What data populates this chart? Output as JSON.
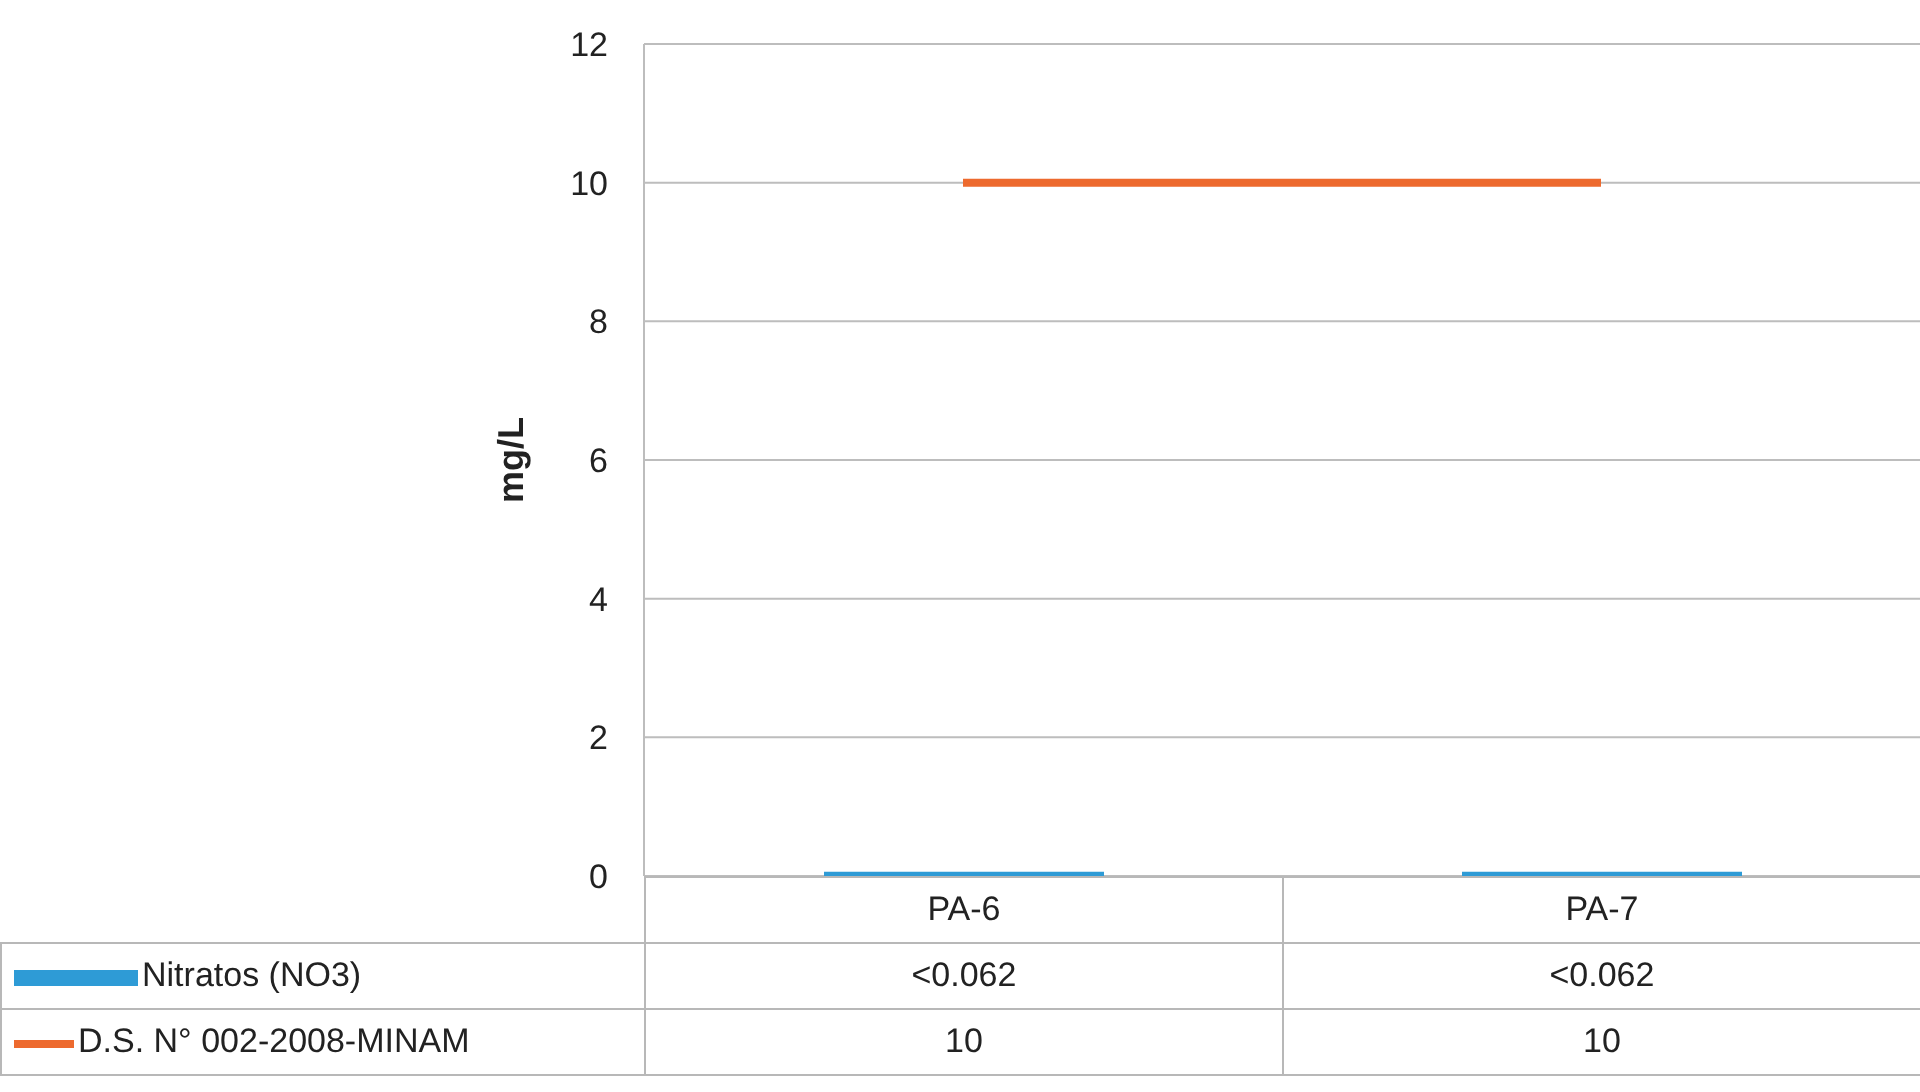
{
  "chart_data": {
    "type": "bar",
    "ylabel": "mg/L",
    "categories": [
      "PA-6",
      "PA-7"
    ],
    "series": [
      {
        "name": "Nitratos (NO3)",
        "color": "#2e9bd6",
        "values": [
          0.062,
          0.062
        ],
        "value_labels": [
          "<0.062",
          "<0.062"
        ]
      },
      {
        "name": "D.S. N° 002-2008-MINAM",
        "type": "line",
        "color": "#ed6a2e",
        "values": [
          10,
          10
        ],
        "value_labels": [
          "10",
          "10"
        ]
      }
    ],
    "ylim": [
      0,
      12
    ],
    "yticks": [
      0,
      2,
      4,
      6,
      8,
      10,
      12
    ],
    "grid": "y",
    "legend": "bottom left",
    "marker": "none"
  }
}
